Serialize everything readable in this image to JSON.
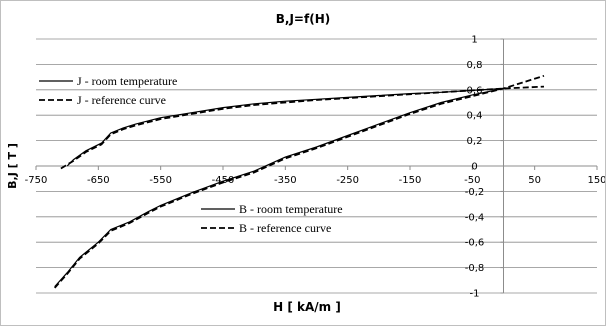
{
  "chart_data": {
    "type": "line",
    "title": "B,J=f(H)",
    "xlabel": "H [ kA/m ]",
    "ylabel": "B,J [ T ]",
    "xlim": [
      -750,
      150
    ],
    "ylim": [
      -1,
      1
    ],
    "x_ticks": [
      -750,
      -650,
      -550,
      -450,
      -350,
      -250,
      -150,
      -50,
      50,
      150
    ],
    "x_tick_labels": [
      "-750",
      "-650",
      "-550",
      "-450",
      "-350",
      "-250",
      "-150",
      "-50",
      "50",
      "150"
    ],
    "y_ticks": [
      -1,
      -0.8,
      -0.6,
      -0.4,
      -0.2,
      0,
      0.2,
      0.4,
      0.6,
      0.8,
      1
    ],
    "y_tick_labels": [
      "-1",
      "-0,8",
      "-0,6",
      "-0,4",
      "-0,2",
      "0",
      "0,2",
      "0,4",
      "0,6",
      "0,8",
      "1"
    ],
    "horizontal_gridlines": true,
    "series": [
      {
        "name": "J - room temperature",
        "style": "solid",
        "color": "#000000",
        "x": [
          -700,
          -690,
          -670,
          -645,
          -630,
          -610,
          -590,
          -550,
          -500,
          -450,
          -400,
          -350,
          -300,
          -250,
          -200,
          -150,
          -100,
          -50,
          0
        ],
        "y": [
          0.0,
          0.05,
          0.12,
          0.18,
          0.26,
          0.3,
          0.33,
          0.38,
          0.42,
          0.46,
          0.49,
          0.51,
          0.525,
          0.54,
          0.555,
          0.57,
          0.58,
          0.595,
          0.61
        ]
      },
      {
        "name": "J - reference curve",
        "style": "dashed",
        "color": "#000000",
        "x": [
          -710,
          -690,
          -670,
          -645,
          -630,
          -610,
          -590,
          -550,
          -500,
          -450,
          -400,
          -350,
          -300,
          -250,
          -200,
          -150,
          -100,
          -50,
          0,
          65
        ],
        "y": [
          -0.02,
          0.04,
          0.11,
          0.17,
          0.25,
          0.29,
          0.32,
          0.37,
          0.41,
          0.45,
          0.48,
          0.5,
          0.52,
          0.535,
          0.55,
          0.565,
          0.58,
          0.595,
          0.61,
          0.625
        ]
      },
      {
        "name": "B - room temperature",
        "style": "solid",
        "color": "#000000",
        "x": [
          -720,
          -700,
          -680,
          -650,
          -630,
          -600,
          -570,
          -550,
          -500,
          -450,
          -400,
          -350,
          -300,
          -250,
          -200,
          -150,
          -100,
          -50,
          0
        ],
        "y": [
          -0.95,
          -0.84,
          -0.72,
          -0.6,
          -0.5,
          -0.44,
          -0.36,
          -0.31,
          -0.21,
          -0.12,
          -0.04,
          0.07,
          0.15,
          0.24,
          0.33,
          0.42,
          0.5,
          0.56,
          0.61
        ]
      },
      {
        "name": "B - reference curve",
        "style": "dashed",
        "color": "#000000",
        "x": [
          -720,
          -700,
          -680,
          -650,
          -630,
          -600,
          -570,
          -550,
          -500,
          -450,
          -400,
          -350,
          -300,
          -250,
          -200,
          -150,
          -100,
          -50,
          0,
          65
        ],
        "y": [
          -0.96,
          -0.85,
          -0.73,
          -0.61,
          -0.51,
          -0.45,
          -0.37,
          -0.32,
          -0.22,
          -0.13,
          -0.05,
          0.06,
          0.14,
          0.23,
          0.32,
          0.41,
          0.49,
          0.55,
          0.61,
          0.71
        ]
      }
    ],
    "legends": [
      [
        "J - room temperature",
        "J - reference curve"
      ],
      [
        "B - room temperature",
        "B - reference curve"
      ]
    ]
  }
}
